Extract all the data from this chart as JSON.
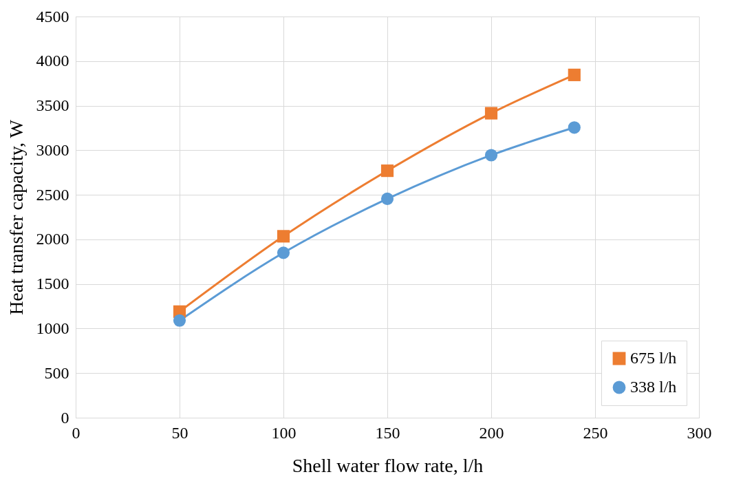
{
  "chart_data": {
    "type": "line",
    "xlabel": "Shell water flow rate, l/h",
    "ylabel": "Heat transfer capacity,  W",
    "x": [
      50,
      100,
      150,
      200,
      240
    ],
    "series": [
      {
        "name": "675 l/h",
        "color": "#ed7d31",
        "marker": "square",
        "values": [
          1190,
          2035,
          2770,
          3415,
          3845
        ]
      },
      {
        "name": "338 l/h",
        "color": "#5b9bd5",
        "marker": "circle",
        "values": [
          1090,
          1850,
          2455,
          2945,
          3255
        ]
      }
    ],
    "xlim": [
      0,
      300
    ],
    "xticks": [
      0,
      50,
      100,
      150,
      200,
      250,
      300
    ],
    "ylim": [
      0,
      4500
    ],
    "yticks": [
      0,
      500,
      1000,
      1500,
      2000,
      2500,
      3000,
      3500,
      4000,
      4500
    ],
    "grid": true,
    "legend": "bottom right",
    "line_style": "solid"
  }
}
